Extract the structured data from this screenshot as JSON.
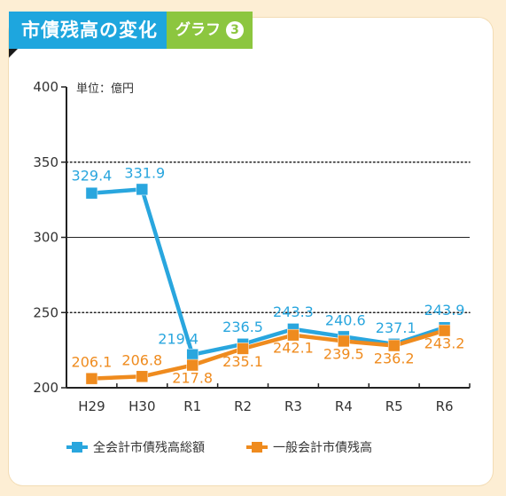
{
  "header": {
    "title": "市債残高の変化",
    "subtitle": "グラフ",
    "subtitle_number": "3"
  },
  "colors": {
    "accent_blue": "#1ea6de",
    "accent_green": "#8cc63f",
    "series_total": "#29a6de",
    "series_general": "#ef8b1e",
    "background": "#fdeed4"
  },
  "chart_data": {
    "type": "line",
    "categories": [
      "H29",
      "H30",
      "R1",
      "R2",
      "R3",
      "R4",
      "R5",
      "R6"
    ],
    "unit_label": "単位：億円",
    "ylim": [
      200,
      400
    ],
    "yticks": [
      200,
      250,
      300,
      350,
      400
    ],
    "dotted_gridlines": [
      250,
      350
    ],
    "solid_gridlines": [
      300
    ],
    "legend_position": "bottom",
    "series": [
      {
        "name": "全会計市債残高総額",
        "color": "#29a6de",
        "values": [
          329.4,
          331.9,
          219.4,
          236.5,
          243.3,
          240.6,
          237.1,
          243.9
        ],
        "plot_values": [
          329.4,
          331.9,
          222.0,
          229.0,
          239.0,
          234.0,
          229.0,
          240.0
        ]
      },
      {
        "name": "一般会計市債残高",
        "color": "#ef8b1e",
        "values": [
          206.1,
          206.8,
          217.8,
          235.1,
          242.1,
          239.5,
          236.2,
          243.2
        ],
        "plot_values": [
          206.1,
          207.5,
          215.0,
          226.0,
          235.0,
          231.0,
          228.0,
          238.0
        ]
      }
    ]
  }
}
